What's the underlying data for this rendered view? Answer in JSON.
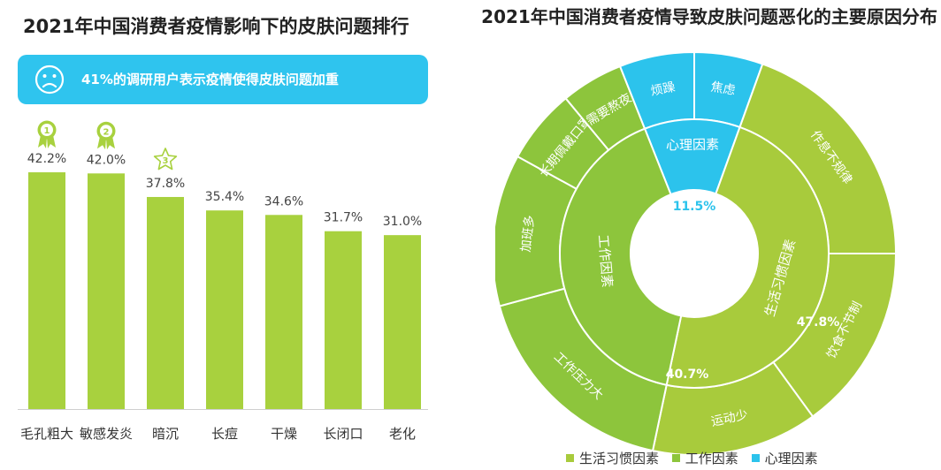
{
  "left_panel": {
    "title": "2021年中国消费者疫情影响下的皮肤问题排行",
    "banner_text": "41%的调研用户表示疫情使得皮肤问题加重"
  },
  "right_panel": {
    "title": "2021年中国消费者疫情导致皮肤问题恶化的主要原因分布"
  },
  "colors": {
    "bar": "#a8d13e",
    "lifestyle": "#a8cb3c",
    "work": "#8dc53c",
    "psych": "#2cc3ec",
    "banner": "#2fc4ee",
    "medal": "#a8d13e"
  },
  "chart_data": [
    {
      "type": "bar",
      "title": "2021年中国消费者疫情影响下的皮肤问题排行",
      "categories": [
        "毛孔粗大",
        "敏感发炎",
        "暗沉",
        "长痘",
        "干燥",
        "长闭口",
        "老化"
      ],
      "values": [
        42.2,
        42.0,
        37.8,
        35.4,
        34.6,
        31.7,
        31.0
      ],
      "value_labels": [
        "42.2%",
        "42.0%",
        "37.8%",
        "35.4%",
        "34.6%",
        "31.7%",
        "31.0%"
      ],
      "rank_badges": [
        "1",
        "2",
        "3"
      ],
      "ylim": [
        0,
        50
      ],
      "unit": "%"
    },
    {
      "type": "sunburst",
      "title": "2021年中国消费者疫情导致皮肤问题恶化的主要原因分布",
      "inner": [
        {
          "name": "心理因素",
          "value": 11.5,
          "label": "11.5%",
          "color_key": "psych"
        },
        {
          "name": "生活习惯因素",
          "value": 47.8,
          "label": "47.8%",
          "color_key": "lifestyle"
        },
        {
          "name": "工作因素",
          "value": 40.7,
          "label": "40.7%",
          "color_key": "work"
        }
      ],
      "outer": [
        {
          "name": "焦虑",
          "parent": "心理因素",
          "value": 5.5
        },
        {
          "name": "作息不规律",
          "parent": "生活习惯因素",
          "value": 19.5
        },
        {
          "name": "饮食不节制",
          "parent": "生活习惯因素",
          "value": 15.0
        },
        {
          "name": "运动少",
          "parent": "生活习惯因素",
          "value": 13.3
        },
        {
          "name": "工作压力大",
          "parent": "工作因素",
          "value": 17.5
        },
        {
          "name": "加班多",
          "parent": "工作因素",
          "value": 12.2
        },
        {
          "name": "长期佩戴口罩",
          "parent": "工作因素",
          "value": 6.0
        },
        {
          "name": "需要熬夜",
          "parent": "工作因素",
          "value": 5.0
        },
        {
          "name": "烦躁",
          "parent": "心理因素",
          "value": 6.0
        }
      ],
      "legend": [
        "生活习惯因素",
        "工作因素",
        "心理因素"
      ]
    }
  ]
}
